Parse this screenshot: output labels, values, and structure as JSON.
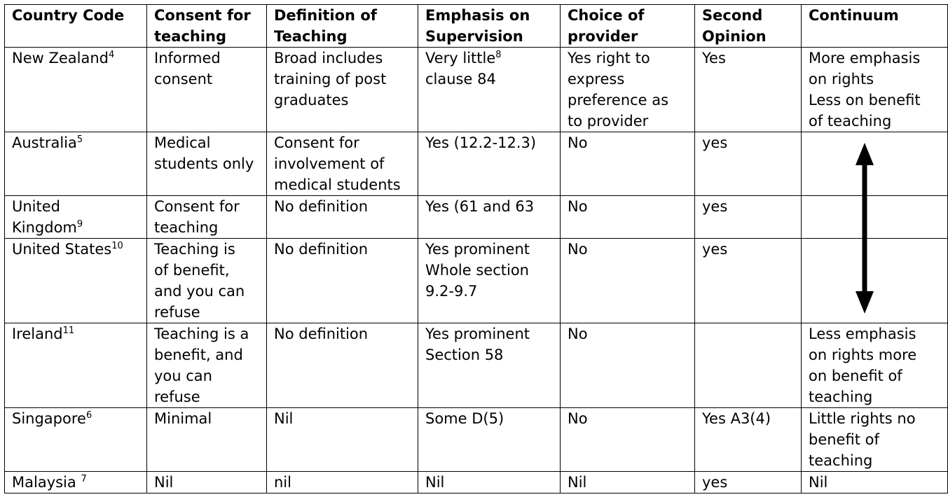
{
  "headers": [
    {
      "lines": [
        "Country Code"
      ]
    },
    {
      "lines": [
        "Consent for",
        "teaching"
      ]
    },
    {
      "lines": [
        "Definition of",
        "Teaching"
      ]
    },
    {
      "lines": [
        "Emphasis on",
        "Supervision"
      ]
    },
    {
      "lines": [
        "Choice of",
        "provider"
      ]
    },
    {
      "lines": [
        "Second",
        "Opinion"
      ]
    },
    {
      "lines": [
        "Continuum"
      ]
    }
  ],
  "rows": [
    {
      "country": {
        "name": "New Zealand",
        "ref": "4"
      },
      "consent": [
        "Informed",
        "consent"
      ],
      "definition": [
        "Broad includes",
        "training of post",
        "graduates"
      ],
      "supervision": {
        "line1": "Very little",
        "line1_ref": "8",
        "rest": [
          "clause 84"
        ]
      },
      "choice": [
        "Yes right to",
        "express",
        "preference as",
        "to provider"
      ],
      "second": [
        "Yes"
      ],
      "continuum": [
        "More emphasis",
        "on rights",
        "Less on benefit",
        "of teaching"
      ]
    },
    {
      "country": {
        "name": "Australia",
        "ref": "5"
      },
      "consent": [
        "Medical",
        "students only"
      ],
      "definition": [
        "Consent for",
        "involvement of",
        "medical students"
      ],
      "supervision": {
        "line1": "Yes (12.2-12.3)",
        "line1_ref": "",
        "rest": []
      },
      "choice": [
        "No"
      ],
      "second": [
        "yes"
      ],
      "continuum": []
    },
    {
      "country": {
        "name": "United",
        "name2": "Kingdom",
        "ref": "9"
      },
      "consent": [
        "Consent for",
        "teaching"
      ],
      "definition": [
        "No definition"
      ],
      "supervision": {
        "line1": "Yes (61 and 63",
        "line1_ref": "",
        "rest": []
      },
      "choice": [
        "No"
      ],
      "second": [
        "yes"
      ],
      "continuum": []
    },
    {
      "country": {
        "name": "United States",
        "ref": "10"
      },
      "consent": [
        "Teaching is",
        "of benefit,",
        "and you can",
        "refuse"
      ],
      "definition": [
        "No definition"
      ],
      "supervision": {
        "line1": "Yes prominent",
        "line1_ref": "",
        "rest": [
          "Whole section",
          "9.2-9.7"
        ]
      },
      "choice": [
        "No"
      ],
      "second": [
        "yes"
      ],
      "continuum": []
    },
    {
      "country": {
        "name": "Ireland",
        "ref": "11"
      },
      "consent": [
        "Teaching is a",
        "benefit, and",
        "you can",
        "refuse"
      ],
      "definition": [
        "No definition"
      ],
      "supervision": {
        "line1": "Yes prominent",
        "line1_ref": "",
        "rest": [
          "Section 58"
        ]
      },
      "choice": [
        "No"
      ],
      "second": [],
      "continuum": [
        "Less emphasis",
        "on rights more",
        "on benefit of",
        "teaching"
      ]
    },
    {
      "country": {
        "name": "Singapore",
        "ref": "6"
      },
      "consent": [
        "Minimal"
      ],
      "definition": [
        "Nil"
      ],
      "supervision": {
        "line1": "Some D(5)",
        "line1_ref": "",
        "rest": []
      },
      "choice": [
        "No"
      ],
      "second": [
        "Yes A3(4)"
      ],
      "continuum": [
        "Little rights no",
        "benefit of",
        "teaching"
      ]
    },
    {
      "country": {
        "name": "Malaysia ",
        "ref": "7"
      },
      "consent": [
        "Nil"
      ],
      "definition": [
        "nil"
      ],
      "supervision": {
        "line1": "Nil",
        "line1_ref": "",
        "rest": []
      },
      "choice": [
        "Nil"
      ],
      "second": [
        "yes"
      ],
      "continuum": [
        "Nil"
      ]
    }
  ],
  "continuum_arrow": {
    "icon": "double-headed-vertical-arrow-icon",
    "color": "#000000"
  }
}
